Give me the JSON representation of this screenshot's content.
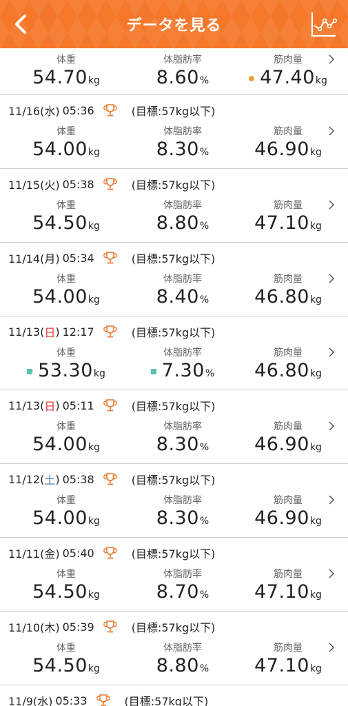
{
  "header": {
    "title": "データを見る",
    "back_icon": "chevron-left-icon",
    "graph_icon": "line-graph-icon",
    "accent_color": "#f4772a"
  },
  "labels": {
    "weight": "体重",
    "body_fat": "体脂肪率",
    "muscle": "筋肉量",
    "unit_kg": "kg",
    "unit_pct": "%"
  },
  "records": [
    {
      "weight": "54.70",
      "body_fat": "8.60",
      "muscle": "47.40"
    },
    {
      "date": "11/16(水)",
      "time": "05:36",
      "goal": "(目標:57kg以下)",
      "weight": "54.00",
      "body_fat": "8.30",
      "muscle": "46.90"
    },
    {
      "date": "11/15(火)",
      "time": "05:38",
      "goal": "(目標:57kg以下)",
      "weight": "54.50",
      "body_fat": "8.80",
      "muscle": "47.10"
    },
    {
      "date": "11/14(月)",
      "time": "05:34",
      "goal": "(目標:57kg以下)",
      "weight": "54.00",
      "body_fat": "8.40",
      "muscle": "46.80"
    },
    {
      "date_pre": "11/13(",
      "day": "日",
      "date_post": ")",
      "time": "12:17",
      "goal": "(目標:57kg以下)",
      "weight": "53.30",
      "body_fat": "7.30",
      "muscle": "46.80"
    },
    {
      "date_pre": "11/13(",
      "day": "日",
      "date_post": ")",
      "time": "05:11",
      "goal": "(目標:57kg以下)",
      "weight": "54.00",
      "body_fat": "8.30",
      "muscle": "46.90"
    },
    {
      "date_pre": "11/12(",
      "day": "土",
      "date_post": ")",
      "time": "05:38",
      "goal": "(目標:57kg以下)",
      "weight": "54.00",
      "body_fat": "8.30",
      "muscle": "46.90"
    },
    {
      "date": "11/11(金)",
      "time": "05:40",
      "goal": "(目標:57kg以下)",
      "weight": "54.50",
      "body_fat": "8.70",
      "muscle": "47.10"
    },
    {
      "date": "11/10(木)",
      "time": "05:39",
      "goal": "(目標:57kg以下)",
      "weight": "54.50",
      "body_fat": "8.80",
      "muscle": "47.10"
    },
    {
      "date": "11/9(水)",
      "time": "05:33",
      "goal": "(目標:57kg以下)"
    }
  ],
  "colors": {
    "saturday": "#2f78c4",
    "sunday": "#e53935",
    "trophy": "#e8772a",
    "dot_orange": "#f0a23a",
    "dot_teal": "#5bc0b0"
  }
}
